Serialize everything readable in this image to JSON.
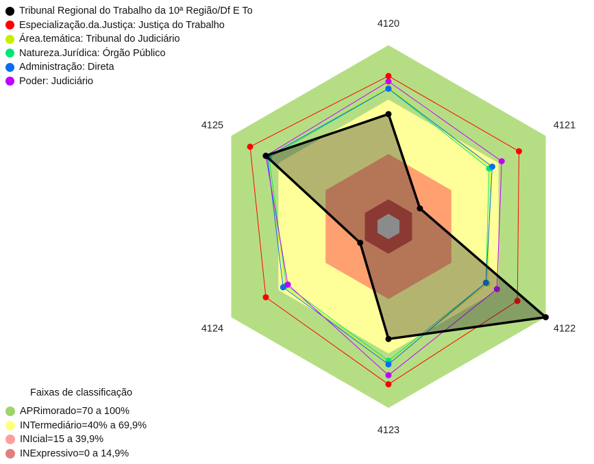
{
  "chart_data": {
    "type": "radar",
    "axes": [
      "4120",
      "4121",
      "4122",
      "4123",
      "4124",
      "4125"
    ],
    "rlim": [
      0,
      100
    ],
    "series": [
      {
        "name": "Tribunal Regional do Trabalho da 10ª Região/Df E To",
        "color": "#000000",
        "values": [
          62,
          20,
          100,
          62,
          18,
          78
        ],
        "emphasis": true
      },
      {
        "name": "Especialização.da.Justiça: Justiça do Trabalho",
        "color": "#ff0000",
        "values": [
          83,
          83,
          82,
          87,
          78,
          88
        ],
        "emphasis": false
      },
      {
        "name": "Área.temática: Tribunal do Judiciário",
        "color": "#c8ee00",
        "values": [
          77,
          65,
          63,
          75,
          66,
          76
        ],
        "emphasis": false
      },
      {
        "name": "Natureza.Jurídica: Órgão Público",
        "color": "#00e676",
        "values": [
          76,
          64,
          62,
          74,
          65,
          76
        ],
        "emphasis": false
      },
      {
        "name": "Administração: Direta",
        "color": "#0a6cf0",
        "values": [
          76,
          66,
          62,
          76,
          67,
          77
        ],
        "emphasis": false
      },
      {
        "name": "Poder: Judiciário",
        "color": "#c000ff",
        "values": [
          80,
          72,
          69,
          82,
          64,
          78
        ],
        "emphasis": false
      }
    ],
    "bands": {
      "title": "Faixas de classificação",
      "items": [
        {
          "label": "APRimorado=70 a 100%",
          "from": 70,
          "to": 100,
          "color": "#b5de84",
          "legend_color": "#9ed46a"
        },
        {
          "label": "INTermediário=40% a 69,9%",
          "from": 40,
          "to": 70,
          "color": "#ffff99",
          "legend_color": "#ffff80"
        },
        {
          "label": "INIcial=15 a 39,9%",
          "from": 15,
          "to": 40,
          "color": "#ffa070",
          "legend_color": "#ff9d9d"
        },
        {
          "label": "INExpressivo=0 a 14,9%",
          "from": 0,
          "to": 15,
          "color": "#c0423a",
          "legend_color": "#e08080"
        }
      ]
    }
  }
}
